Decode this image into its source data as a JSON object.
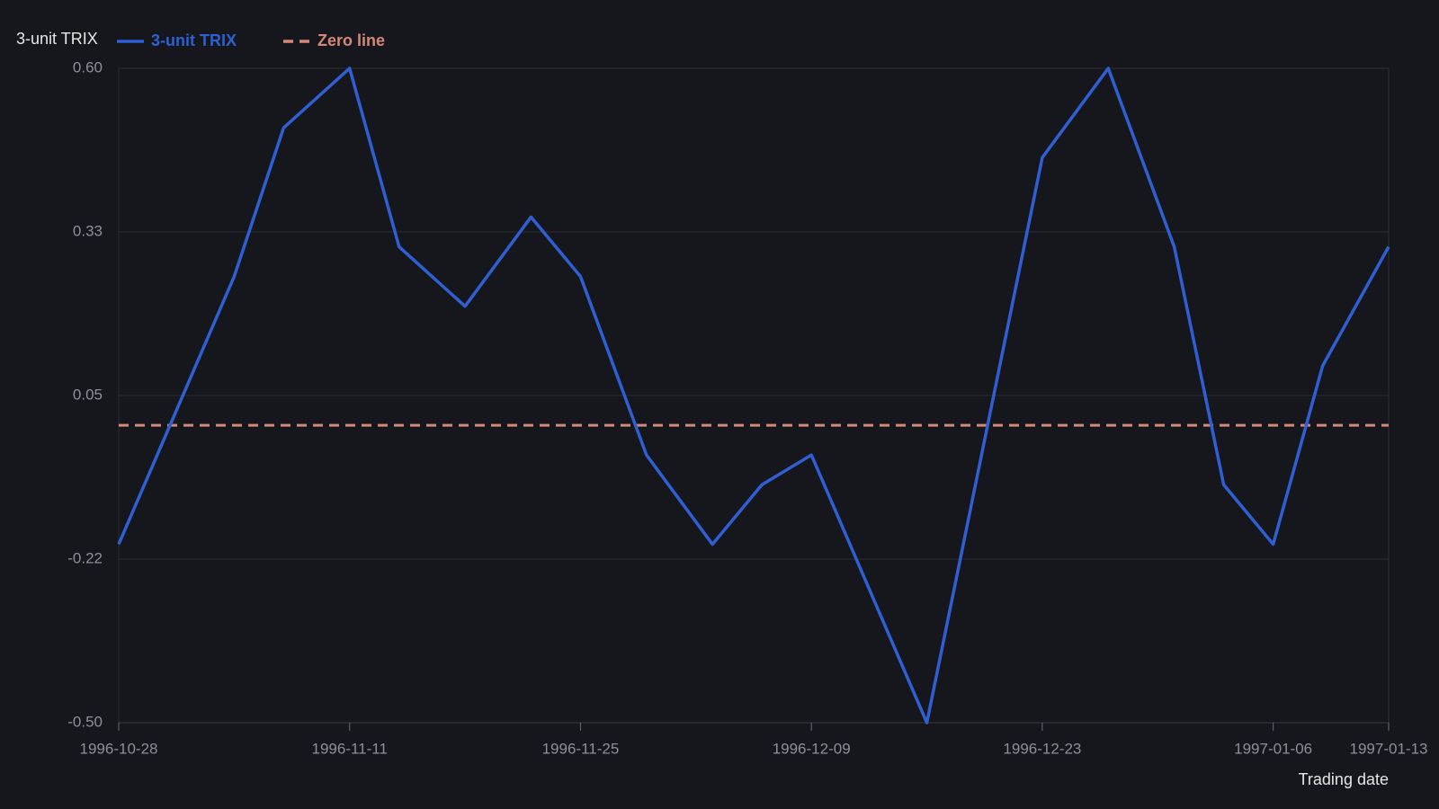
{
  "chart_data": {
    "type": "line",
    "y_label": "3-unit TRIX",
    "x_label": "Trading date",
    "x": [
      "1996-10-28",
      "1996-11-04",
      "1996-11-07",
      "1996-11-11",
      "1996-11-14",
      "1996-11-18",
      "1996-11-22",
      "1996-11-25",
      "1996-11-29",
      "1996-12-03",
      "1996-12-06",
      "1996-12-09",
      "1996-12-16",
      "1996-12-23",
      "1996-12-27",
      "1996-12-31",
      "1997-01-03",
      "1997-01-06",
      "1997-01-09",
      "1997-01-13"
    ],
    "series": [
      {
        "name": "3-unit TRIX",
        "color": "#2f5fd3",
        "values": [
          -0.2,
          0.25,
          0.5,
          0.6,
          0.3,
          0.2,
          0.35,
          0.25,
          -0.05,
          -0.2,
          -0.1,
          -0.05,
          -0.5,
          0.45,
          0.6,
          0.3,
          -0.1,
          -0.2,
          0.1,
          0.3
        ]
      }
    ],
    "reference_line": {
      "name": "Zero line",
      "color": "#d4887a",
      "value": 0
    },
    "xlim": [
      "1996-10-28",
      "1997-01-13"
    ],
    "xticks": [
      "1996-10-28",
      "1996-11-11",
      "1996-11-25",
      "1996-12-09",
      "1996-12-23",
      "1997-01-06",
      "1997-01-13"
    ],
    "ylim": [
      -0.5,
      0.6
    ],
    "yticks": [
      {
        "value": -0.5,
        "label": "-0.50"
      },
      {
        "value": -0.225,
        "label": "-0.22"
      },
      {
        "value": 0.05,
        "label": "0.05"
      },
      {
        "value": 0.325,
        "label": "0.33"
      },
      {
        "value": 0.6,
        "label": "0.60"
      }
    ],
    "grid": true
  }
}
